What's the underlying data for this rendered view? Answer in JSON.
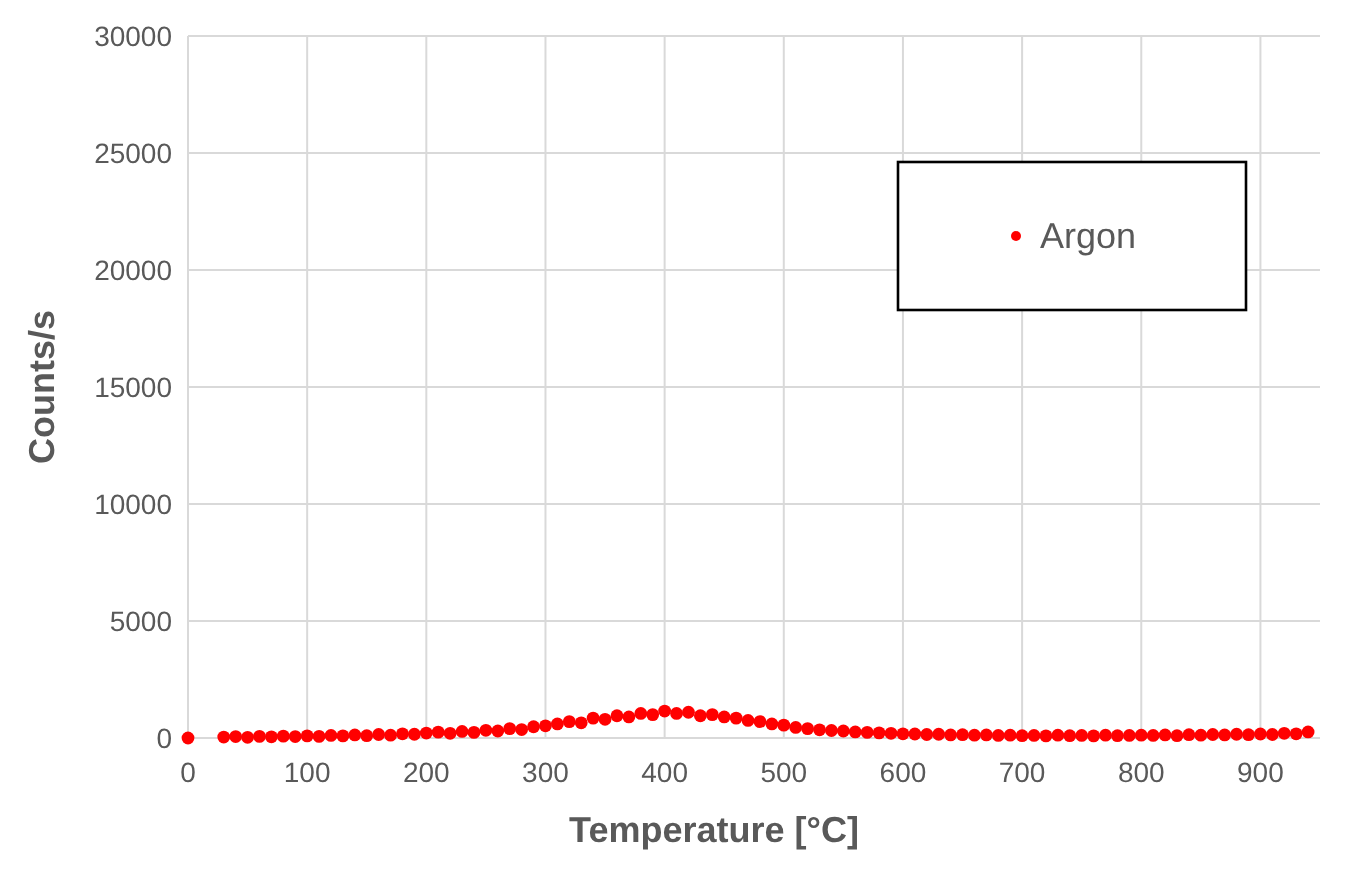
{
  "chart_data": {
    "type": "scatter",
    "xlabel": "Temperature [°C]",
    "ylabel": "Counts/s",
    "xlim": [
      0,
      950
    ],
    "xticks": [
      0,
      100,
      200,
      300,
      400,
      500,
      600,
      700,
      800,
      900
    ],
    "ylim": [
      0,
      30000
    ],
    "yticks": [
      0,
      5000,
      10000,
      15000,
      20000,
      25000,
      30000
    ],
    "grid": true,
    "legend": "top right",
    "marker": "circle",
    "x": [
      0,
      30,
      40,
      50,
      60,
      70,
      80,
      90,
      100,
      110,
      120,
      130,
      140,
      150,
      160,
      170,
      180,
      190,
      200,
      210,
      220,
      230,
      240,
      250,
      260,
      270,
      280,
      290,
      300,
      310,
      320,
      330,
      340,
      350,
      360,
      370,
      380,
      390,
      400,
      410,
      420,
      430,
      440,
      450,
      460,
      470,
      480,
      490,
      500,
      510,
      520,
      530,
      540,
      550,
      560,
      570,
      580,
      590,
      600,
      610,
      620,
      630,
      640,
      650,
      660,
      670,
      680,
      690,
      700,
      710,
      720,
      730,
      740,
      750,
      760,
      770,
      780,
      790,
      800,
      810,
      820,
      830,
      840,
      850,
      860,
      870,
      880,
      890,
      900,
      910,
      920,
      930,
      940
    ],
    "series": [
      {
        "name": "Argon",
        "color": "#ff0000",
        "values": [
          0,
          40,
          60,
          30,
          70,
          50,
          80,
          60,
          90,
          70,
          110,
          90,
          130,
          100,
          150,
          120,
          180,
          160,
          210,
          250,
          200,
          280,
          240,
          330,
          300,
          400,
          360,
          480,
          520,
          600,
          700,
          650,
          850,
          800,
          950,
          900,
          1050,
          1000,
          1150,
          1050,
          1100,
          950,
          1000,
          900,
          850,
          750,
          700,
          600,
          550,
          450,
          400,
          350,
          320,
          300,
          260,
          240,
          220,
          200,
          180,
          170,
          150,
          160,
          130,
          140,
          120,
          130,
          110,
          120,
          100,
          110,
          90,
          120,
          100,
          110,
          90,
          120,
          100,
          110,
          120,
          110,
          130,
          100,
          140,
          120,
          150,
          130,
          160,
          140,
          170,
          150,
          200,
          180,
          260
        ]
      }
    ]
  }
}
